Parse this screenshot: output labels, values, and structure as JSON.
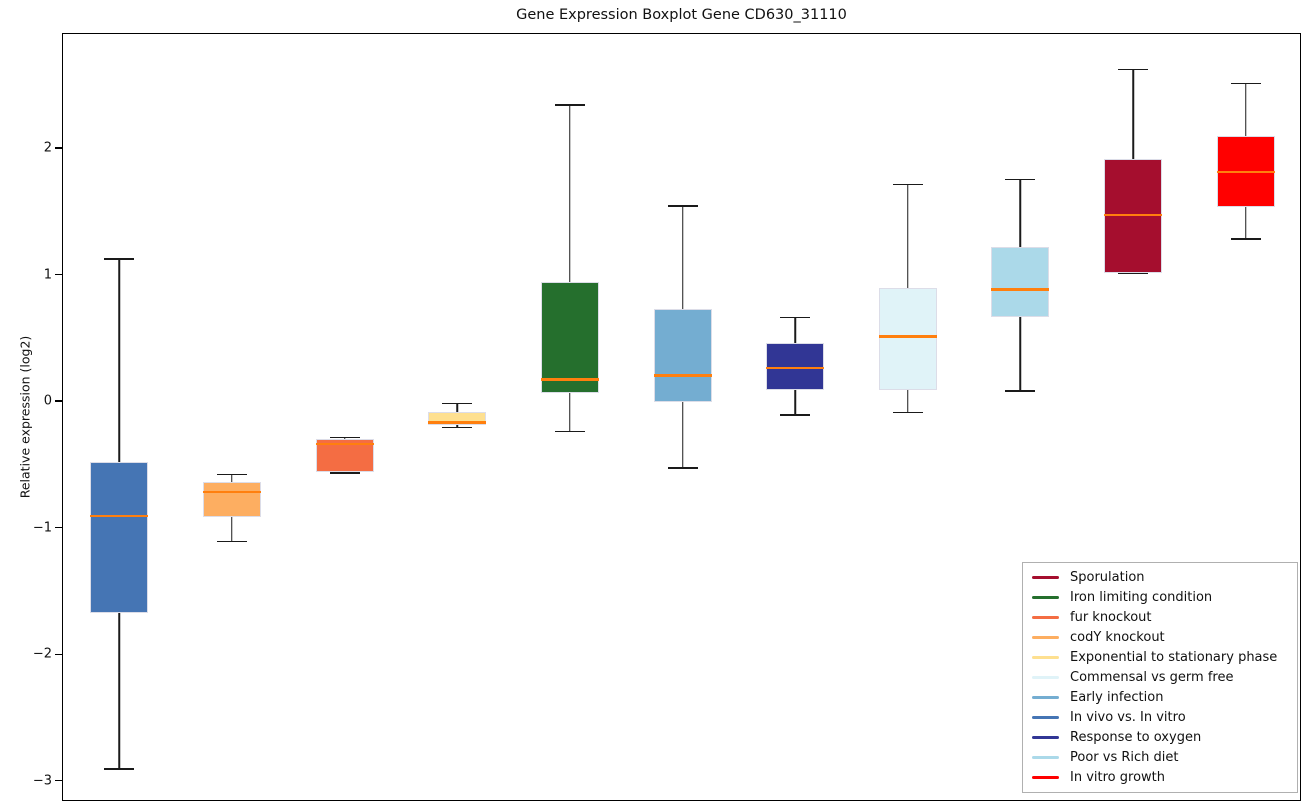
{
  "chart_data": {
    "type": "boxplot",
    "title": "Gene Expression Boxplot Gene CD630_31110",
    "xlabel": "",
    "ylabel": "Relative expression (log2)",
    "ylim": [
      -3.16,
      2.91
    ],
    "grid": false,
    "legend_position": "lower right",
    "median_color": "#ff7f0e",
    "whisker_color": "#1a1a1a",
    "yticks": [
      {
        "value": 2,
        "label": "2"
      },
      {
        "value": 1,
        "label": "1"
      },
      {
        "value": 0,
        "label": "0"
      },
      {
        "value": -1,
        "label": "−1"
      },
      {
        "value": -2,
        "label": "−2"
      },
      {
        "value": -3,
        "label": "−3"
      }
    ],
    "series": [
      {
        "label": "In vivo vs. In vitro",
        "color": "#4575b4",
        "whislo": -2.9,
        "q1": -1.67,
        "med": -0.9,
        "q3": -0.47,
        "whishi": 1.13
      },
      {
        "label": "codY knockout",
        "color": "#fdae61",
        "whislo": -1.1,
        "q1": -0.91,
        "med": -0.71,
        "q3": -0.63,
        "whishi": -0.57
      },
      {
        "label": "fur knockout",
        "color": "#f46d43",
        "whislo": -0.56,
        "q1": -0.55,
        "med": -0.33,
        "q3": -0.29,
        "whishi": -0.28
      },
      {
        "label": "Exponential to stationary phase",
        "color": "#fee090",
        "whislo": -0.2,
        "q1": -0.18,
        "med": -0.16,
        "q3": -0.08,
        "whishi": -0.01
      },
      {
        "label": "Iron limiting condition",
        "color": "#256f2d",
        "whislo": -0.23,
        "q1": 0.07,
        "med": 0.18,
        "q3": 0.95,
        "whishi": 2.35
      },
      {
        "label": "Early infection",
        "color": "#74add1",
        "whislo": -0.52,
        "q1": 0.0,
        "med": 0.21,
        "q3": 0.74,
        "whishi": 1.55
      },
      {
        "label": "Response to oxygen",
        "color": "#313695",
        "whislo": -0.1,
        "q1": 0.1,
        "med": 0.27,
        "q3": 0.47,
        "whishi": 0.67
      },
      {
        "label": "Commensal vs germ free",
        "color": "#e0f3f8",
        "whislo": -0.08,
        "q1": 0.1,
        "med": 0.52,
        "q3": 0.9,
        "whishi": 1.72
      },
      {
        "label": "Poor vs Rich diet",
        "color": "#abd9e9",
        "whislo": 0.09,
        "q1": 0.67,
        "med": 0.89,
        "q3": 1.23,
        "whishi": 1.76
      },
      {
        "label": "Sporulation",
        "color": "#a50e2e",
        "whislo": 1.02,
        "q1": 1.02,
        "med": 1.48,
        "q3": 1.92,
        "whishi": 2.63
      },
      {
        "label": "In vitro growth",
        "color": "#ff0000",
        "whislo": 1.29,
        "q1": 1.54,
        "med": 1.82,
        "q3": 2.1,
        "whishi": 2.52
      }
    ],
    "legend_order": [
      "Sporulation",
      "Iron limiting condition",
      "fur knockout",
      "codY knockout",
      "Exponential to stationary phase",
      "Commensal vs germ free",
      "Early infection",
      "In vivo vs. In vitro",
      "Response to oxygen",
      "Poor vs Rich diet",
      "In vitro growth"
    ]
  }
}
